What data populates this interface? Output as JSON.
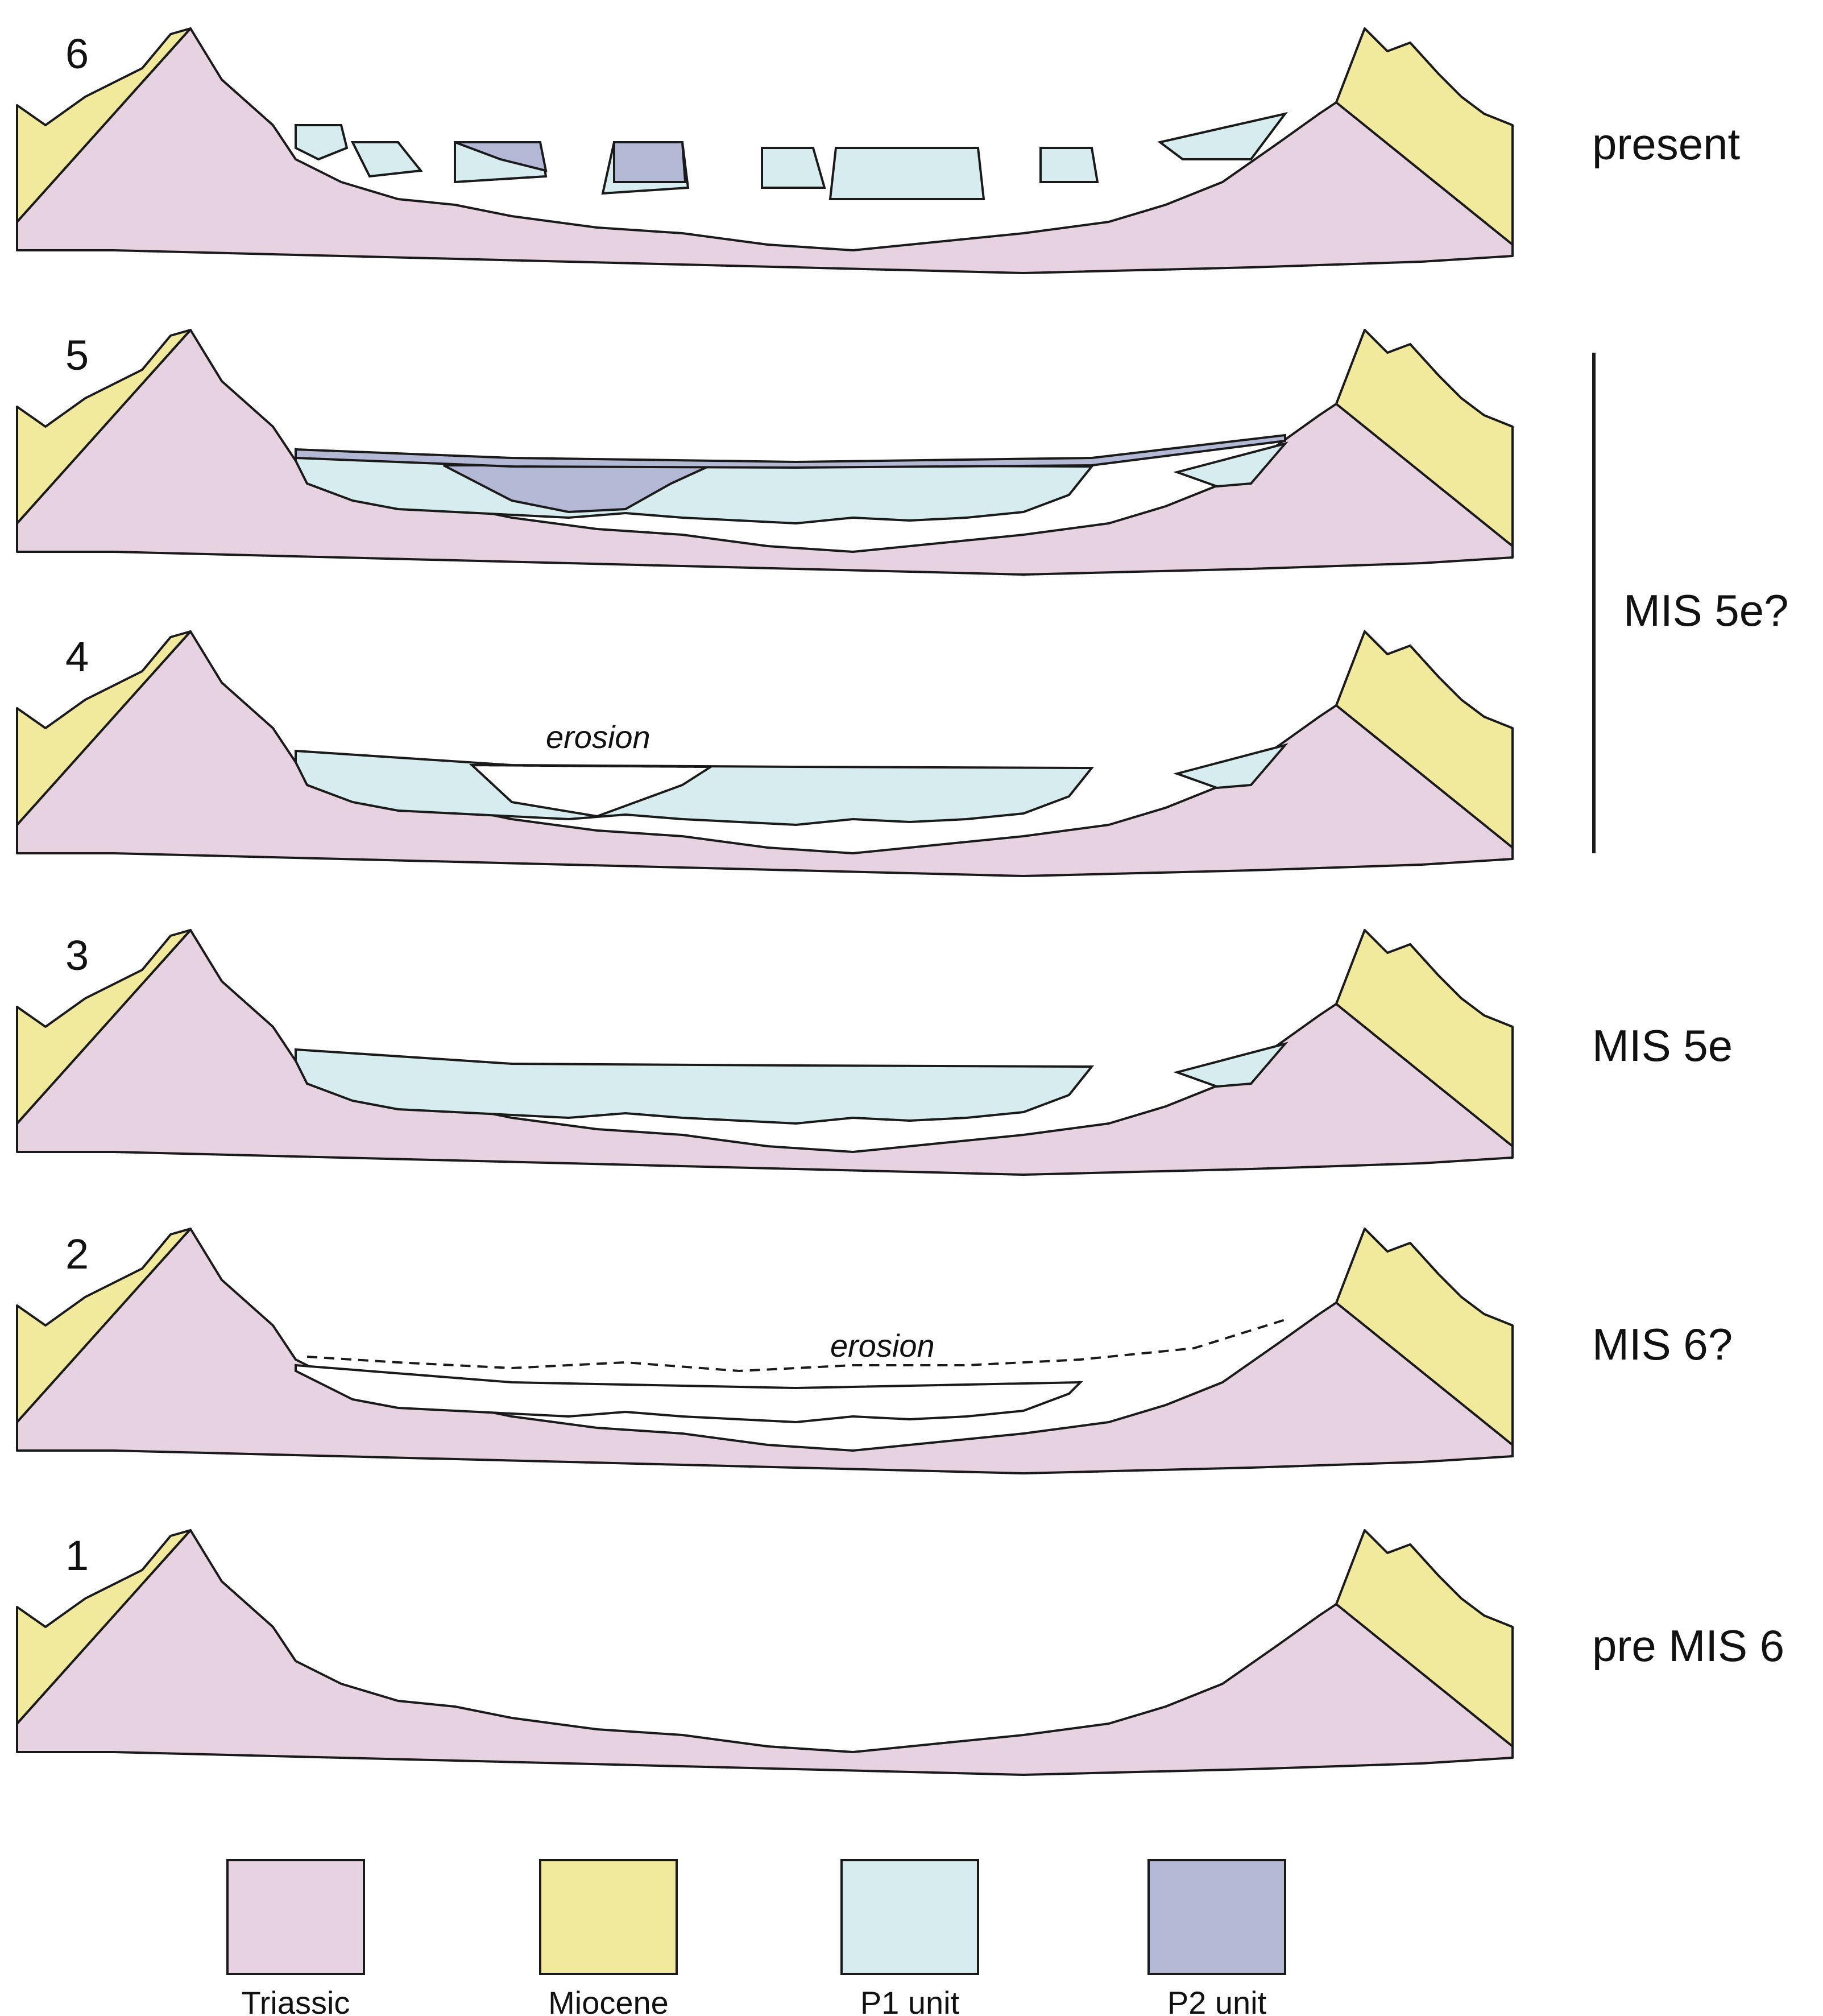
{
  "colors": {
    "triassic": "#e6d2e0",
    "miocene": "#f1e99b",
    "p1_unit": "#d6ecef",
    "p2_unit": "#b3b8d4",
    "line": "#1a1a1a"
  },
  "stages": [
    {
      "id": "6",
      "label": "6",
      "period": "present"
    },
    {
      "id": "5",
      "label": "5",
      "period": ""
    },
    {
      "id": "4",
      "label": "4",
      "period": "",
      "annotation": "erosion"
    },
    {
      "id": "3",
      "label": "3",
      "period": "MIS 5e"
    },
    {
      "id": "2",
      "label": "2",
      "period": "MIS 6?",
      "annotation": "erosion"
    },
    {
      "id": "1",
      "label": "1",
      "period": "pre MIS 6"
    }
  ],
  "bracket_label": "MIS 5e?",
  "legend": [
    {
      "key": "triassic",
      "label": "Triassic"
    },
    {
      "key": "miocene",
      "label": "Miocene"
    },
    {
      "key": "p1_unit",
      "label": "P1 unit"
    },
    {
      "key": "p2_unit",
      "label": "P2 unit"
    }
  ]
}
